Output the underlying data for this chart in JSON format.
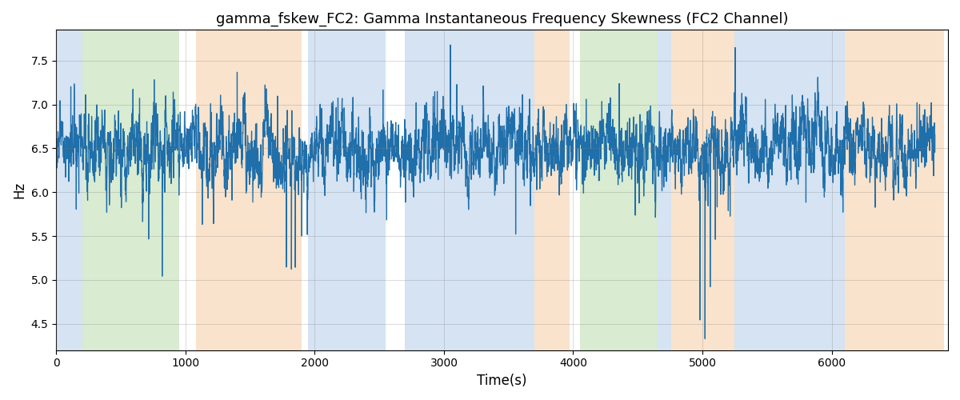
{
  "title": "gamma_fskew_FC2: Gamma Instantaneous Frequency Skewness (FC2 Channel)",
  "xlabel": "Time(s)",
  "ylabel": "Hz",
  "ylim": [
    4.2,
    7.85
  ],
  "xlim": [
    0,
    6900
  ],
  "line_color": "#1f6fab",
  "line_width": 0.9,
  "background_bands": [
    {
      "xmin": 0,
      "xmax": 200,
      "color": "#adc8e8",
      "alpha": 0.5
    },
    {
      "xmin": 200,
      "xmax": 950,
      "color": "#b5d9a3",
      "alpha": 0.5
    },
    {
      "xmin": 1080,
      "xmax": 1900,
      "color": "#f5c99a",
      "alpha": 0.5
    },
    {
      "xmin": 1950,
      "xmax": 2550,
      "color": "#adc8e8",
      "alpha": 0.5
    },
    {
      "xmin": 2700,
      "xmax": 3700,
      "color": "#adc8e8",
      "alpha": 0.5
    },
    {
      "xmin": 3700,
      "xmax": 3970,
      "color": "#f5c99a",
      "alpha": 0.5
    },
    {
      "xmin": 4050,
      "xmax": 4650,
      "color": "#b5d9a3",
      "alpha": 0.5
    },
    {
      "xmin": 4650,
      "xmax": 4760,
      "color": "#adc8e8",
      "alpha": 0.5
    },
    {
      "xmin": 4760,
      "xmax": 5250,
      "color": "#f5c99a",
      "alpha": 0.5
    },
    {
      "xmin": 5250,
      "xmax": 6100,
      "color": "#adc8e8",
      "alpha": 0.5
    },
    {
      "xmin": 6100,
      "xmax": 6870,
      "color": "#f5c99a",
      "alpha": 0.5
    }
  ],
  "title_fontsize": 13
}
